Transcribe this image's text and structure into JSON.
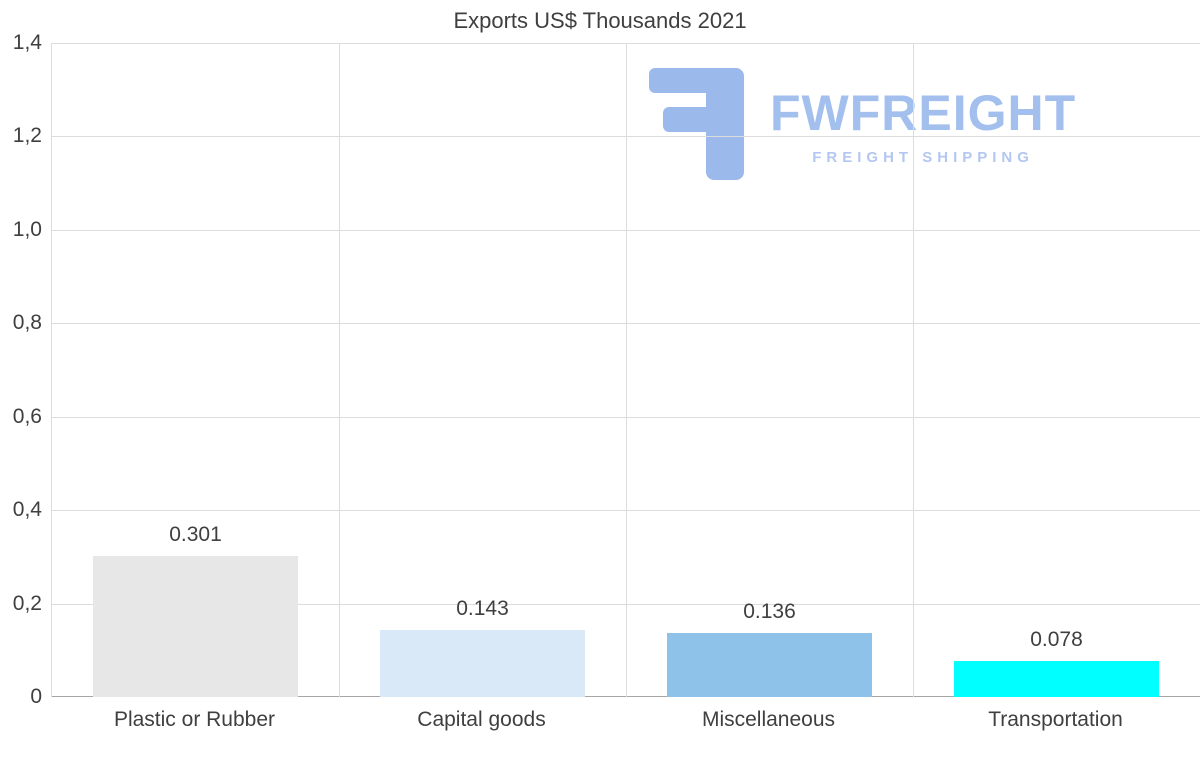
{
  "watermark": {
    "brand": "FWFREIGHT",
    "tagline": "FREIGHT SHIPPING",
    "brand_color": "#a2bfee",
    "tagline_color": "#b4c7f0",
    "icon_color": "#9cb9ec"
  },
  "chart_data": {
    "type": "bar",
    "title": "Exports US$ Thousands 2021",
    "categories": [
      "Plastic or Rubber",
      "Capital goods",
      "Miscellaneous",
      "Transportation"
    ],
    "values": [
      0.301,
      0.143,
      0.136,
      0.078
    ],
    "value_labels": [
      "0.301",
      "0.143",
      "0.136",
      "0.078"
    ],
    "bar_colors": [
      "#e7e7e7",
      "#d9e9f8",
      "#8fc2e9",
      "#00ffff"
    ],
    "xlabel": "",
    "ylabel": "",
    "ylim": [
      0,
      1.4
    ],
    "yticks": [
      0,
      0.2,
      0.4,
      0.6,
      0.8,
      1.0,
      1.2,
      1.4
    ],
    "ytick_labels": [
      "0",
      "0,2",
      "0,4",
      "0,6",
      "0,8",
      "1,0",
      "1,2",
      "1,4"
    ],
    "grid": true,
    "legend": "none"
  }
}
